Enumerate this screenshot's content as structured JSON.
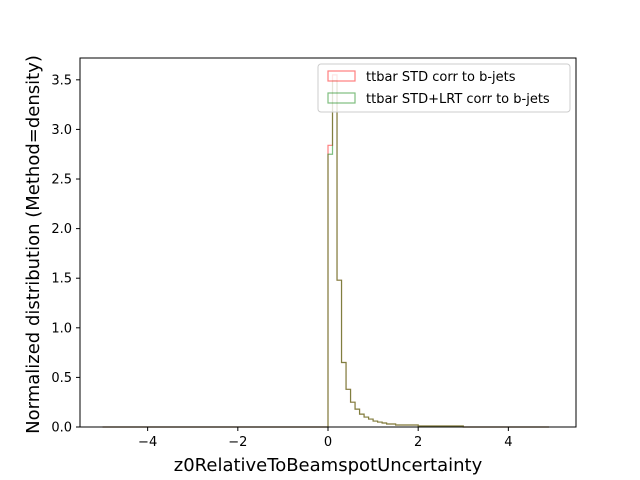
{
  "chart_data": {
    "type": "histogram",
    "xlabel": "z0RelativeToBeamspotUncertainty",
    "ylabel": "Normalized distribution (Method=density)",
    "xlim": [
      -5.5,
      5.5
    ],
    "ylim": [
      0,
      3.72
    ],
    "xticks": [
      -4,
      -2,
      0,
      2,
      4
    ],
    "yticks": [
      0.0,
      0.5,
      1.0,
      1.5,
      2.0,
      2.5,
      3.0,
      3.5
    ],
    "xtick_labels": [
      "−4",
      "−2",
      "0",
      "2",
      "4"
    ],
    "ytick_labels": [
      "0.0",
      "0.5",
      "1.0",
      "1.5",
      "2.0",
      "2.5",
      "3.0",
      "3.5"
    ],
    "grid": false,
    "legend_position": "upper right",
    "series": [
      {
        "name": "ttbar STD corr to b-jets",
        "color": "#ff0000",
        "bin_edges": [
          -5.0,
          0.0,
          0.1,
          0.2,
          0.3,
          0.4,
          0.5,
          0.6,
          0.7,
          0.8,
          0.9,
          1.0,
          1.1,
          1.2,
          1.3,
          1.4,
          1.5,
          2.0,
          3.0,
          4.9
        ],
        "values": [
          0.0,
          2.84,
          3.55,
          1.48,
          0.65,
          0.38,
          0.25,
          0.18,
          0.13,
          0.1,
          0.08,
          0.06,
          0.05,
          0.04,
          0.03,
          0.03,
          0.02,
          0.01,
          0.0
        ]
      },
      {
        "name": "ttbar STD+LRT corr to b-jets",
        "color": "#008000",
        "bin_edges": [
          -5.0,
          0.0,
          0.1,
          0.2,
          0.3,
          0.4,
          0.5,
          0.6,
          0.7,
          0.8,
          0.9,
          1.0,
          1.1,
          1.2,
          1.3,
          1.4,
          1.5,
          2.0,
          3.0,
          4.9
        ],
        "values": [
          0.0,
          2.75,
          3.49,
          1.48,
          0.65,
          0.38,
          0.25,
          0.18,
          0.13,
          0.1,
          0.08,
          0.06,
          0.05,
          0.04,
          0.03,
          0.03,
          0.02,
          0.01,
          0.0
        ]
      }
    ]
  }
}
